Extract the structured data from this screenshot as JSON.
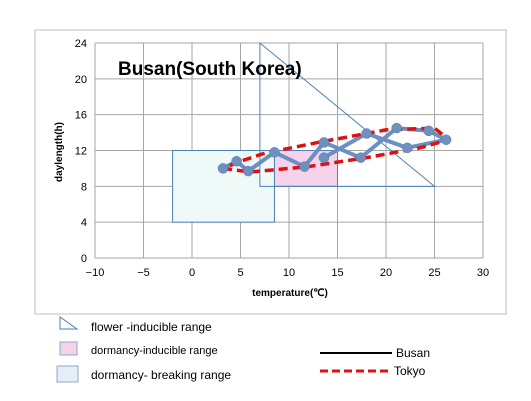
{
  "chart_data": {
    "type": "line",
    "title": "Busan(South Korea)",
    "xlabel": "temperature(℃)",
    "ylabel": "daylength(h)",
    "xlim": [
      -10,
      30
    ],
    "ylim": [
      0,
      24
    ],
    "xticks": [
      "−10",
      "−5",
      "0",
      "5",
      "10",
      "15",
      "20",
      "25",
      "30"
    ],
    "yticks": [
      "0",
      "4",
      "8",
      "12",
      "16",
      "20",
      "24"
    ],
    "grid": true,
    "colors": {
      "busan_line": "#6b8fc2",
      "busan_marker": "#6f8fbd",
      "tokyo_line": "#dd1111",
      "flower_edge": "#4a83b6",
      "dormancy_inducible_fill": "#f6d3ea",
      "dormancy_breaking_fill": "#eff9f8"
    },
    "series": [
      {
        "name": "Busan",
        "x": [
          3.2,
          4.6,
          5.8,
          8.5,
          11.6,
          13.6,
          17.4,
          21.1,
          24.4,
          26.2,
          22.2,
          18.0,
          13.6
        ],
        "y": [
          10.0,
          10.8,
          9.7,
          11.8,
          10.2,
          12.9,
          11.2,
          14.5,
          14.2,
          13.2,
          12.3,
          13.9,
          11.2
        ]
      },
      {
        "name": "Tokyo",
        "x": [
          3.2,
          6.0,
          12.0,
          18.0,
          23.5,
          26.5,
          25.0,
          20.0,
          13.0,
          7.5,
          5.0,
          3.2
        ],
        "y": [
          10.0,
          9.6,
          10.2,
          11.2,
          12.3,
          13.2,
          14.5,
          14.3,
          12.9,
          11.7,
          10.8,
          10.0
        ]
      }
    ],
    "ranges": {
      "flower_inducible": [
        [
          7,
          24
        ],
        [
          25,
          8
        ],
        [
          7,
          8
        ]
      ],
      "dormancy_inducible": {
        "x": [
          8.5,
          15
        ],
        "y": [
          8,
          12
        ]
      },
      "dormancy_breaking": {
        "x": [
          -2,
          8.5
        ],
        "y": [
          4,
          12
        ]
      }
    },
    "legend": {
      "flower": "flower -inducible range",
      "dormancy_inducible": "dormancy-inducible range",
      "dormancy_breaking": "dormancy- breaking range",
      "busan": "Busan",
      "tokyo": "Tokyo"
    }
  }
}
